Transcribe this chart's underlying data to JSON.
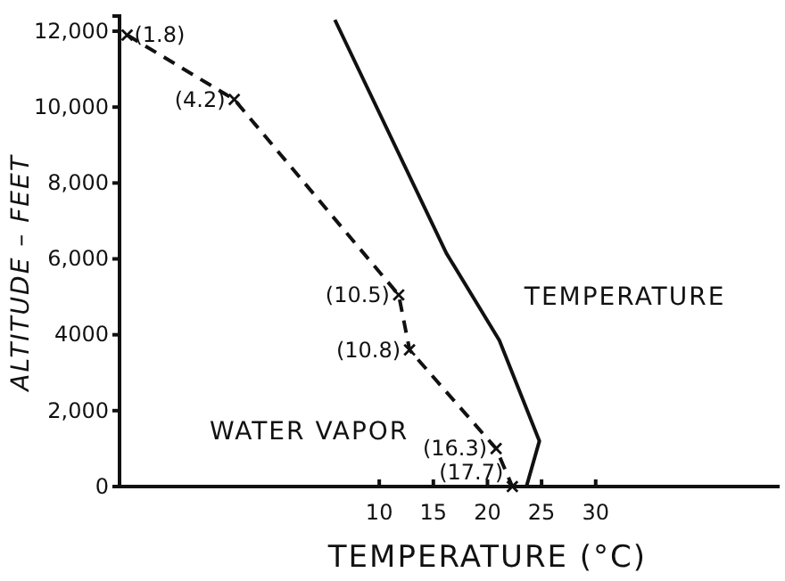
{
  "chart_data": {
    "type": "line",
    "xlabel": "TEMPERATURE (°C)",
    "ylabel": "ALTITUDE – FEET",
    "xlim": [
      -14,
      47
    ],
    "ylim": [
      0,
      12400
    ],
    "xticks": [
      10,
      15,
      20,
      25,
      30
    ],
    "yticks": [
      0,
      {
        "value": 2000,
        "label": "2,000"
      },
      {
        "value": 4000,
        "label": "4000"
      },
      {
        "value": 6000,
        "label": "6,000"
      },
      {
        "value": 8000,
        "label": "8,000"
      },
      {
        "value": 10000,
        "label": "10,000"
      },
      {
        "value": 12000,
        "label": "12,000"
      }
    ],
    "series": [
      {
        "name": "TEMPERATURE",
        "color": "#111111",
        "line_style": "solid",
        "marker": "none",
        "x": [
          5.9,
          16.2,
          21.1,
          24.8,
          23.6
        ],
        "values": [
          12300,
          6150,
          3850,
          1200,
          0
        ]
      },
      {
        "name": "WATER VAPOR",
        "color": "#111111",
        "line_style": "dashed",
        "marker": "cross",
        "x": [
          -13.3,
          -3.4,
          11.8,
          12.8,
          20.8,
          22.3
        ],
        "values": [
          11900,
          10200,
          5050,
          3600,
          1000,
          0
        ]
      }
    ],
    "annotations": [
      {
        "text": "(1.8)",
        "x": -13.3,
        "y": 11900
      },
      {
        "text": "(4.2)",
        "x": -3.4,
        "y": 10200
      },
      {
        "text": "(10.5)",
        "x": 11.8,
        "y": 5050
      },
      {
        "text": "(10.8)",
        "x": 12.8,
        "y": 3600
      },
      {
        "text": "(16.3)",
        "x": 20.8,
        "y": 1000
      },
      {
        "text": "(17.7)",
        "x": 22.3,
        "y": 0
      }
    ],
    "grid": false
  }
}
